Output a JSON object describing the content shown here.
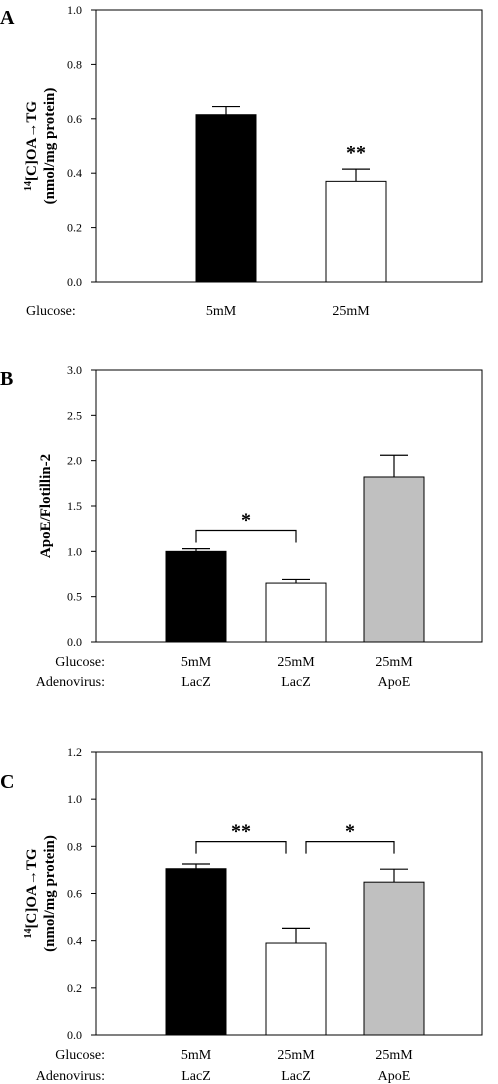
{
  "colors": {
    "black": "#000000",
    "white": "#ffffff",
    "gray": "#c0c0c0"
  },
  "chart_data": [
    {
      "panel": "A",
      "type": "bar",
      "ylabel_main": "[C]OA→TG",
      "ylabel_sup": "14",
      "ylabel_line2": "(nmol/mg protein)",
      "ylim": [
        0,
        1.0
      ],
      "yticks": [
        "0.0",
        "0.2",
        "0.4",
        "0.6",
        "0.8",
        "1.0"
      ],
      "row_labels": [
        "Glucose:"
      ],
      "categories": [
        [
          "5mM"
        ],
        [
          "25mM"
        ]
      ],
      "values": [
        0.615,
        0.37
      ],
      "errors": [
        0.03,
        0.045
      ],
      "fills": [
        "black",
        "white"
      ],
      "annotations": [
        {
          "text": "**",
          "bar": 1
        }
      ],
      "brackets": []
    },
    {
      "panel": "B",
      "type": "bar",
      "ylabel_main": "ApoE/Flotillin-2",
      "ylabel_sup": "",
      "ylabel_line2": "",
      "ylim": [
        0,
        3.0
      ],
      "yticks": [
        "0.0",
        "0.5",
        "1.0",
        "1.5",
        "2.0",
        "2.5",
        "3.0"
      ],
      "row_labels": [
        "Glucose:",
        "Adenovirus:"
      ],
      "categories": [
        [
          "5mM",
          "LacZ"
        ],
        [
          "25mM",
          "LacZ"
        ],
        [
          "25mM",
          "ApoE"
        ]
      ],
      "values": [
        1.0,
        0.65,
        1.82
      ],
      "errors": [
        0.03,
        0.04,
        0.24
      ],
      "fills": [
        "black",
        "white",
        "gray"
      ],
      "annotations": [],
      "brackets": [
        {
          "from": 0,
          "to": 1,
          "y": 1.23,
          "text": "*"
        }
      ]
    },
    {
      "panel": "C",
      "type": "bar",
      "ylabel_main": "[C]OA→TG",
      "ylabel_sup": "14",
      "ylabel_line2": "(nmol/mg protein)",
      "ylim": [
        0,
        1.2
      ],
      "yticks": [
        "0.0",
        "0.2",
        "0.4",
        "0.6",
        "0.8",
        "1.0",
        "1.2"
      ],
      "row_labels": [
        "Glucose:",
        "Adenovirus:"
      ],
      "categories": [
        [
          "5mM",
          "LacZ"
        ],
        [
          "25mM",
          "LacZ"
        ],
        [
          "25mM",
          "ApoE"
        ]
      ],
      "values": [
        0.705,
        0.39,
        0.648
      ],
      "errors": [
        0.02,
        0.062,
        0.055
      ],
      "fills": [
        "black",
        "white",
        "gray"
      ],
      "annotations": [],
      "brackets": [
        {
          "from": 0,
          "to": 1,
          "y": 0.82,
          "text": "**"
        },
        {
          "from": 1,
          "to": 2,
          "y": 0.82,
          "text": "*"
        }
      ]
    }
  ]
}
